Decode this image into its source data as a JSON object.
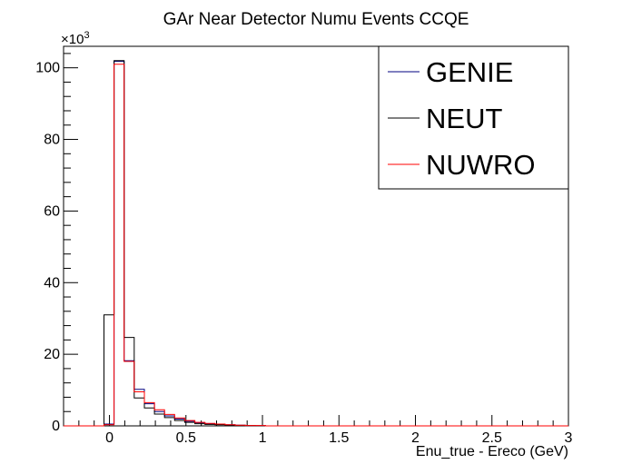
{
  "chart_data": {
    "type": "histogram-step",
    "title": "GAr Near Detector Numu Events CCQE",
    "xlabel": "Enu_true - Ereco (GeV)",
    "ylabel": "",
    "y_multiplier_label": "×10",
    "y_multiplier_exponent": "3",
    "xlim": [
      -0.3,
      3.0
    ],
    "ylim": [
      0,
      106
    ],
    "x_ticks": [
      {
        "value": 0,
        "label": "0"
      },
      {
        "value": 0.5,
        "label": "0.5"
      },
      {
        "value": 1.0,
        "label": "1"
      },
      {
        "value": 1.5,
        "label": "1.5"
      },
      {
        "value": 2.0,
        "label": "2"
      },
      {
        "value": 2.5,
        "label": "2.5"
      },
      {
        "value": 3.0,
        "label": "3"
      }
    ],
    "y_ticks": [
      {
        "value": 0,
        "label": "0"
      },
      {
        "value": 20,
        "label": "20"
      },
      {
        "value": 40,
        "label": "40"
      },
      {
        "value": 60,
        "label": "60"
      },
      {
        "value": 80,
        "label": "80"
      },
      {
        "value": 100,
        "label": "100"
      }
    ],
    "bin_width": 0.066,
    "bin_start": -0.3,
    "legend_position": "top-right",
    "series": [
      {
        "name": "GENIE",
        "color": "#000080",
        "values": [
          0,
          0,
          0,
          0,
          0.5,
          101.8,
          18.2,
          10.2,
          6.2,
          4.0,
          2.8,
          1.9,
          1.3,
          0.9,
          0.6,
          0.4,
          0.3,
          0.2,
          0.1,
          0.1,
          0,
          0,
          0,
          0,
          0,
          0,
          0,
          0,
          0,
          0,
          0,
          0,
          0,
          0,
          0,
          0,
          0,
          0,
          0,
          0,
          0,
          0,
          0,
          0,
          0,
          0,
          0,
          0,
          0,
          0
        ]
      },
      {
        "name": "NEUT",
        "color": "#000000",
        "values": [
          0,
          0,
          0,
          0,
          31.0,
          102.0,
          24.7,
          7.8,
          5.0,
          3.3,
          2.3,
          1.5,
          1.0,
          0.6,
          0.4,
          0.3,
          0.2,
          0.1,
          0.1,
          0,
          0,
          0,
          0,
          0,
          0,
          0,
          0,
          0,
          0,
          0,
          0,
          0,
          0,
          0,
          0,
          0,
          0,
          0,
          0,
          0,
          0,
          0,
          0,
          0,
          0,
          0,
          0,
          0,
          0,
          0
        ]
      },
      {
        "name": "NUWRO",
        "color": "#ff0000",
        "values": [
          0,
          0,
          0,
          0,
          0.3,
          101.0,
          18.0,
          9.5,
          6.5,
          4.5,
          3.2,
          2.2,
          1.5,
          1.0,
          0.7,
          0.5,
          0.3,
          0.2,
          0.1,
          0.1,
          0,
          0,
          0,
          0,
          0,
          0,
          0,
          0,
          0,
          0,
          0,
          0,
          0,
          0,
          0,
          0,
          0,
          0,
          0,
          0,
          0,
          0,
          0,
          0,
          0,
          0,
          0,
          0,
          0,
          0
        ]
      }
    ]
  }
}
